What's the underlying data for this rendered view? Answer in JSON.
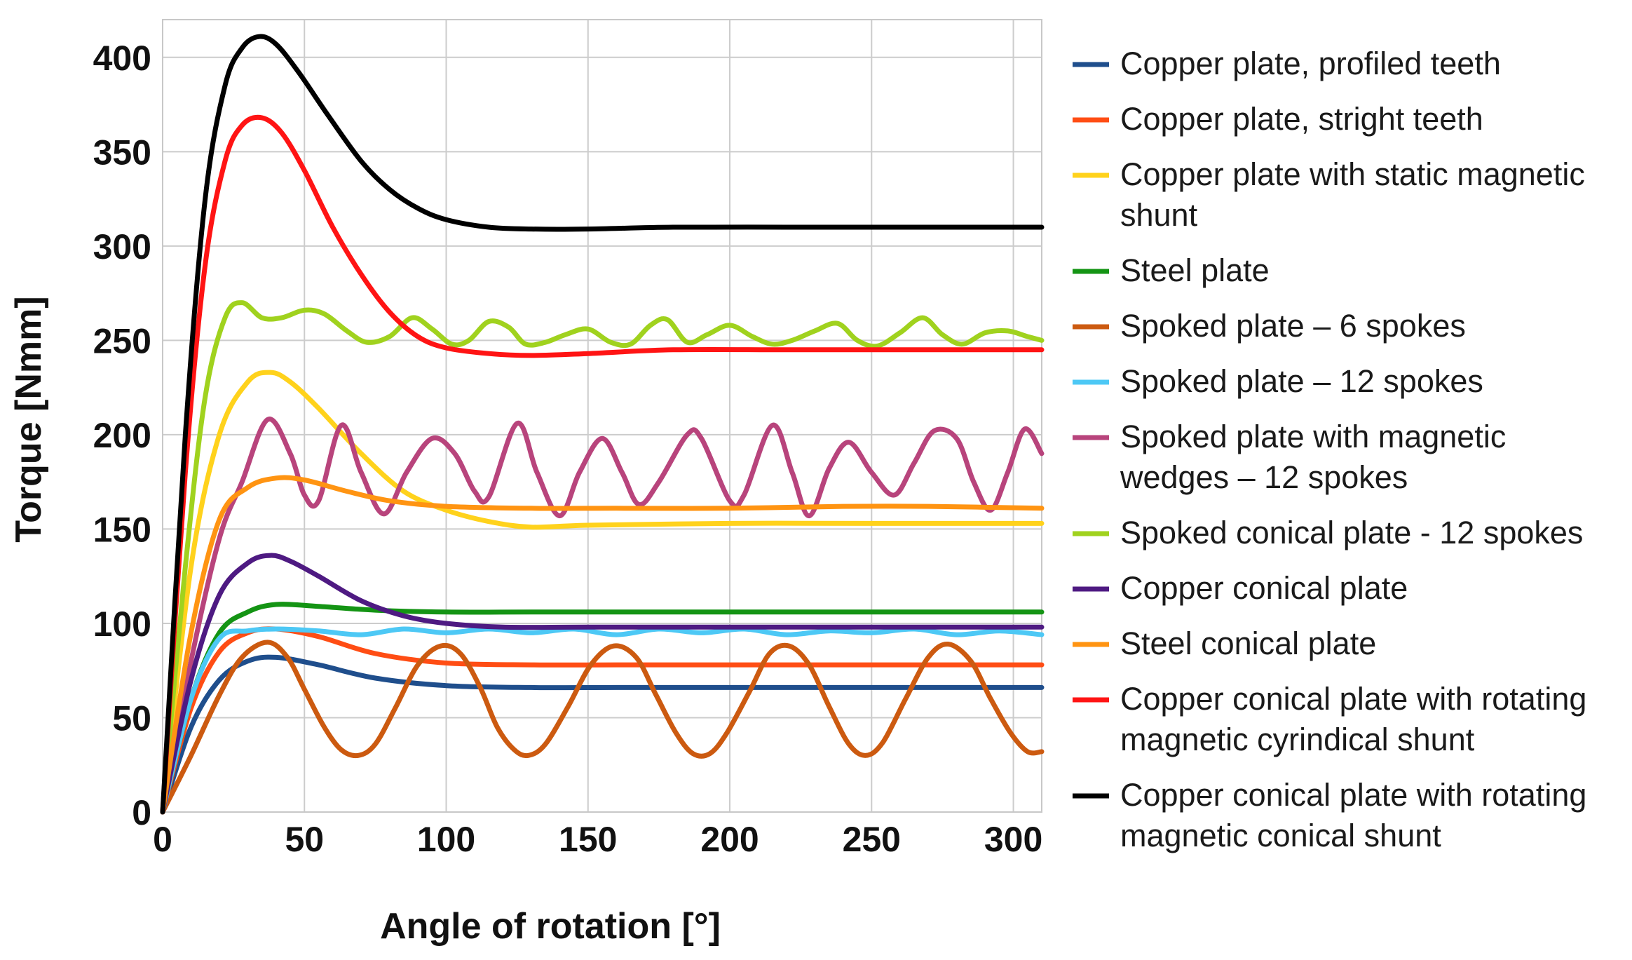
{
  "chart_data": {
    "type": "line",
    "title": "",
    "xlabel": "Angle of rotation [°]",
    "ylabel": "Torque [Nmm]",
    "xlim": [
      0,
      310
    ],
    "ylim": [
      0,
      420
    ],
    "xticks": [
      0,
      50,
      100,
      150,
      200,
      250,
      300
    ],
    "yticks": [
      0,
      50,
      100,
      150,
      200,
      250,
      300,
      350,
      400
    ],
    "grid": true,
    "legend_position": "right",
    "series": [
      {
        "name": "Copper plate, profiled teeth",
        "label_lines": [
          "Copper plate, profiled teeth"
        ],
        "color": "#1f4e8c",
        "points": [
          [
            0,
            0
          ],
          [
            10,
            45
          ],
          [
            20,
            70
          ],
          [
            30,
            80
          ],
          [
            40,
            82
          ],
          [
            55,
            78
          ],
          [
            75,
            71
          ],
          [
            100,
            67
          ],
          [
            130,
            66
          ],
          [
            160,
            66
          ],
          [
            200,
            66
          ],
          [
            250,
            66
          ],
          [
            310,
            66
          ]
        ]
      },
      {
        "name": "Copper plate, stright teeth",
        "label_lines": [
          "Copper plate, stright teeth"
        ],
        "color": "#ff4d14",
        "points": [
          [
            0,
            0
          ],
          [
            10,
            55
          ],
          [
            20,
            85
          ],
          [
            30,
            95
          ],
          [
            40,
            97
          ],
          [
            55,
            93
          ],
          [
            75,
            84
          ],
          [
            100,
            79
          ],
          [
            130,
            78
          ],
          [
            160,
            78
          ],
          [
            200,
            78
          ],
          [
            250,
            78
          ],
          [
            310,
            78
          ]
        ]
      },
      {
        "name": "Copper plate with static magnetic shunt",
        "label_lines": [
          "Copper plate with static magnetic",
          "shunt"
        ],
        "color": "#ffd21c",
        "points": [
          [
            0,
            0
          ],
          [
            10,
            130
          ],
          [
            20,
            200
          ],
          [
            30,
            228
          ],
          [
            38,
            233
          ],
          [
            45,
            228
          ],
          [
            55,
            214
          ],
          [
            70,
            190
          ],
          [
            85,
            170
          ],
          [
            100,
            160
          ],
          [
            115,
            154
          ],
          [
            130,
            151
          ],
          [
            150,
            152
          ],
          [
            200,
            153
          ],
          [
            250,
            153
          ],
          [
            310,
            153
          ]
        ]
      },
      {
        "name": "Steel plate",
        "label_lines": [
          "Steel plate"
        ],
        "color": "#149414",
        "points": [
          [
            0,
            0
          ],
          [
            10,
            60
          ],
          [
            20,
            95
          ],
          [
            30,
            106
          ],
          [
            40,
            110
          ],
          [
            55,
            109
          ],
          [
            75,
            107
          ],
          [
            100,
            106
          ],
          [
            130,
            106
          ],
          [
            200,
            106
          ],
          [
            250,
            106
          ],
          [
            310,
            106
          ]
        ]
      },
      {
        "name": "Spoked plate – 6 spokes",
        "label_lines": [
          "Spoked plate – 6 spokes"
        ],
        "color": "#cc5a10",
        "points": [
          [
            0,
            0
          ],
          [
            10,
            30
          ],
          [
            20,
            62
          ],
          [
            28,
            82
          ],
          [
            37,
            90
          ],
          [
            44,
            82
          ],
          [
            50,
            65
          ],
          [
            57,
            45
          ],
          [
            63,
            33
          ],
          [
            69,
            30
          ],
          [
            75,
            36
          ],
          [
            82,
            55
          ],
          [
            90,
            78
          ],
          [
            98,
            88
          ],
          [
            105,
            84
          ],
          [
            112,
            66
          ],
          [
            118,
            45
          ],
          [
            124,
            33
          ],
          [
            129,
            30
          ],
          [
            135,
            36
          ],
          [
            143,
            56
          ],
          [
            151,
            78
          ],
          [
            159,
            88
          ],
          [
            167,
            82
          ],
          [
            174,
            62
          ],
          [
            181,
            42
          ],
          [
            187,
            31
          ],
          [
            193,
            31
          ],
          [
            199,
            42
          ],
          [
            207,
            64
          ],
          [
            214,
            84
          ],
          [
            221,
            88
          ],
          [
            228,
            78
          ],
          [
            235,
            56
          ],
          [
            242,
            36
          ],
          [
            248,
            30
          ],
          [
            254,
            37
          ],
          [
            262,
            60
          ],
          [
            270,
            82
          ],
          [
            277,
            89
          ],
          [
            285,
            80
          ],
          [
            292,
            60
          ],
          [
            299,
            42
          ],
          [
            305,
            32
          ],
          [
            310,
            32
          ]
        ]
      },
      {
        "name": "Spoked plate – 12 spokes",
        "label_lines": [
          "Spoked plate – 12 spokes"
        ],
        "color": "#4dc8f5",
        "points": [
          [
            0,
            0
          ],
          [
            10,
            60
          ],
          [
            20,
            92
          ],
          [
            30,
            96
          ],
          [
            40,
            97
          ],
          [
            55,
            96
          ],
          [
            70,
            94
          ],
          [
            85,
            97
          ],
          [
            100,
            95
          ],
          [
            115,
            97
          ],
          [
            130,
            95
          ],
          [
            145,
            97
          ],
          [
            160,
            94
          ],
          [
            175,
            97
          ],
          [
            190,
            95
          ],
          [
            205,
            97
          ],
          [
            220,
            94
          ],
          [
            235,
            96
          ],
          [
            250,
            95
          ],
          [
            265,
            97
          ],
          [
            280,
            94
          ],
          [
            295,
            96
          ],
          [
            310,
            94
          ]
        ]
      },
      {
        "name": "Spoked plate with magnetic wedges – 12 spokes",
        "label_lines": [
          "Spoked plate with magnetic",
          "wedges – 12 spokes"
        ],
        "color": "#b8447c",
        "points": [
          [
            0,
            0
          ],
          [
            10,
            80
          ],
          [
            20,
            145
          ],
          [
            28,
            175
          ],
          [
            37,
            208
          ],
          [
            45,
            190
          ],
          [
            50,
            168
          ],
          [
            55,
            165
          ],
          [
            63,
            205
          ],
          [
            70,
            180
          ],
          [
            78,
            158
          ],
          [
            86,
            180
          ],
          [
            95,
            198
          ],
          [
            103,
            190
          ],
          [
            110,
            170
          ],
          [
            115,
            167
          ],
          [
            125,
            206
          ],
          [
            132,
            180
          ],
          [
            140,
            157
          ],
          [
            147,
            180
          ],
          [
            155,
            198
          ],
          [
            162,
            180
          ],
          [
            168,
            163
          ],
          [
            175,
            175
          ],
          [
            185,
            200
          ],
          [
            190,
            198
          ],
          [
            200,
            165
          ],
          [
            205,
            168
          ],
          [
            215,
            205
          ],
          [
            222,
            180
          ],
          [
            228,
            157
          ],
          [
            235,
            182
          ],
          [
            242,
            196
          ],
          [
            250,
            180
          ],
          [
            258,
            168
          ],
          [
            265,
            185
          ],
          [
            272,
            202
          ],
          [
            280,
            198
          ],
          [
            286,
            175
          ],
          [
            292,
            160
          ],
          [
            298,
            180
          ],
          [
            304,
            203
          ],
          [
            310,
            190
          ]
        ]
      },
      {
        "name": "Spoked conical plate - 12 spokes",
        "label_lines": [
          "Spoked conical plate - 12 spokes"
        ],
        "color": "#a0d21e",
        "points": [
          [
            0,
            0
          ],
          [
            8,
            130
          ],
          [
            15,
            220
          ],
          [
            22,
            262
          ],
          [
            28,
            270
          ],
          [
            35,
            262
          ],
          [
            42,
            262
          ],
          [
            50,
            266
          ],
          [
            57,
            264
          ],
          [
            65,
            255
          ],
          [
            72,
            249
          ],
          [
            80,
            252
          ],
          [
            88,
            262
          ],
          [
            95,
            256
          ],
          [
            102,
            248
          ],
          [
            108,
            250
          ],
          [
            115,
            260
          ],
          [
            122,
            257
          ],
          [
            128,
            248
          ],
          [
            135,
            249
          ],
          [
            142,
            253
          ],
          [
            150,
            256
          ],
          [
            158,
            249
          ],
          [
            165,
            248
          ],
          [
            172,
            258
          ],
          [
            178,
            261
          ],
          [
            185,
            249
          ],
          [
            192,
            253
          ],
          [
            200,
            258
          ],
          [
            208,
            252
          ],
          [
            215,
            248
          ],
          [
            222,
            250
          ],
          [
            230,
            255
          ],
          [
            238,
            259
          ],
          [
            245,
            250
          ],
          [
            252,
            247
          ],
          [
            260,
            254
          ],
          [
            268,
            262
          ],
          [
            275,
            253
          ],
          [
            282,
            248
          ],
          [
            290,
            254
          ],
          [
            298,
            255
          ],
          [
            305,
            252
          ],
          [
            310,
            250
          ]
        ]
      },
      {
        "name": "Copper conical plate",
        "label_lines": [
          "Copper conical plate"
        ],
        "color": "#4e1a82",
        "points": [
          [
            0,
            0
          ],
          [
            10,
            70
          ],
          [
            20,
            115
          ],
          [
            30,
            132
          ],
          [
            38,
            136
          ],
          [
            45,
            133
          ],
          [
            55,
            125
          ],
          [
            70,
            112
          ],
          [
            85,
            104
          ],
          [
            100,
            100
          ],
          [
            120,
            98
          ],
          [
            150,
            98
          ],
          [
            200,
            98
          ],
          [
            250,
            98
          ],
          [
            310,
            98
          ]
        ]
      },
      {
        "name": "Steel conical plate",
        "label_lines": [
          "Steel conical plate"
        ],
        "color": "#ff9412",
        "points": [
          [
            0,
            0
          ],
          [
            10,
            95
          ],
          [
            20,
            155
          ],
          [
            30,
            172
          ],
          [
            40,
            177
          ],
          [
            50,
            176
          ],
          [
            65,
            170
          ],
          [
            80,
            165
          ],
          [
            100,
            162
          ],
          [
            130,
            161
          ],
          [
            160,
            161
          ],
          [
            200,
            161
          ],
          [
            240,
            162
          ],
          [
            270,
            162
          ],
          [
            310,
            161
          ]
        ]
      },
      {
        "name": "Copper conical plate with rotating magnetic cyrindical shunt",
        "label_lines": [
          "Copper conical plate with rotating",
          "magnetic cyrindical shunt"
        ],
        "color": "#ff1414",
        "points": [
          [
            0,
            0
          ],
          [
            8,
            180
          ],
          [
            15,
            290
          ],
          [
            22,
            345
          ],
          [
            28,
            364
          ],
          [
            35,
            368
          ],
          [
            42,
            360
          ],
          [
            50,
            340
          ],
          [
            60,
            310
          ],
          [
            70,
            285
          ],
          [
            80,
            265
          ],
          [
            90,
            252
          ],
          [
            100,
            246
          ],
          [
            115,
            243
          ],
          [
            130,
            242
          ],
          [
            150,
            243
          ],
          [
            180,
            245
          ],
          [
            220,
            245
          ],
          [
            260,
            245
          ],
          [
            310,
            245
          ]
        ]
      },
      {
        "name": "Copper conical plate with rotating magnetic conical shunt",
        "label_lines": [
          "Copper conical plate with rotating",
          "magnetic conical shunt"
        ],
        "color": "#000000",
        "points": [
          [
            0,
            0
          ],
          [
            8,
            200
          ],
          [
            15,
            325
          ],
          [
            22,
            385
          ],
          [
            28,
            405
          ],
          [
            34,
            411
          ],
          [
            40,
            407
          ],
          [
            48,
            392
          ],
          [
            58,
            370
          ],
          [
            70,
            345
          ],
          [
            80,
            330
          ],
          [
            90,
            320
          ],
          [
            100,
            314
          ],
          [
            115,
            310
          ],
          [
            130,
            309
          ],
          [
            150,
            309
          ],
          [
            180,
            310
          ],
          [
            220,
            310
          ],
          [
            260,
            310
          ],
          [
            310,
            310
          ]
        ]
      }
    ]
  }
}
